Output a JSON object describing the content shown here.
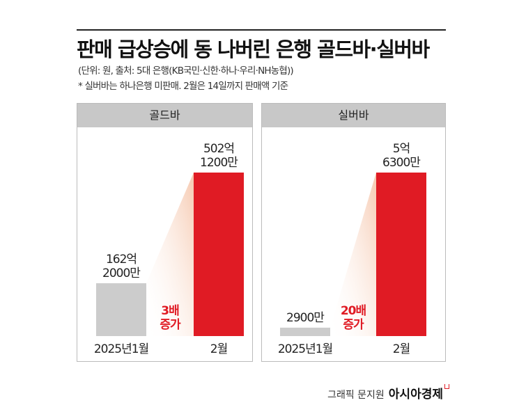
{
  "title": "판매 급상승에 동 나버린 은행 골드바·실버바",
  "subtitle": "(단위: 원, 출처: 5대 은행(KB국민·신한·하나·우리·NH농협))",
  "note": "* 실버바는 하나은행 미판매. 2월은 14일까지 판매액 기준",
  "credit": "그래픽 문지원",
  "brand": "아시아경제",
  "colors": {
    "jan_bar": "#cccccc",
    "feb_bar": "#e01b24",
    "header": "#c8c8c8",
    "increase": "#e01b24"
  },
  "chart_data": [
    {
      "type": "bar",
      "title": "골드바",
      "categories": [
        "2025년1월",
        "2월"
      ],
      "values": [
        16220000000,
        50212000000
      ],
      "value_labels": [
        "162억\n2000만",
        "502억\n1200만"
      ],
      "increase_label": "3배\n증가"
    },
    {
      "type": "bar",
      "title": "실버바",
      "categories": [
        "2025년1월",
        "2월"
      ],
      "values": [
        29000000,
        563000000
      ],
      "value_labels": [
        "2900만",
        "5억\n6300만"
      ],
      "increase_label": "20배\n증가"
    }
  ]
}
